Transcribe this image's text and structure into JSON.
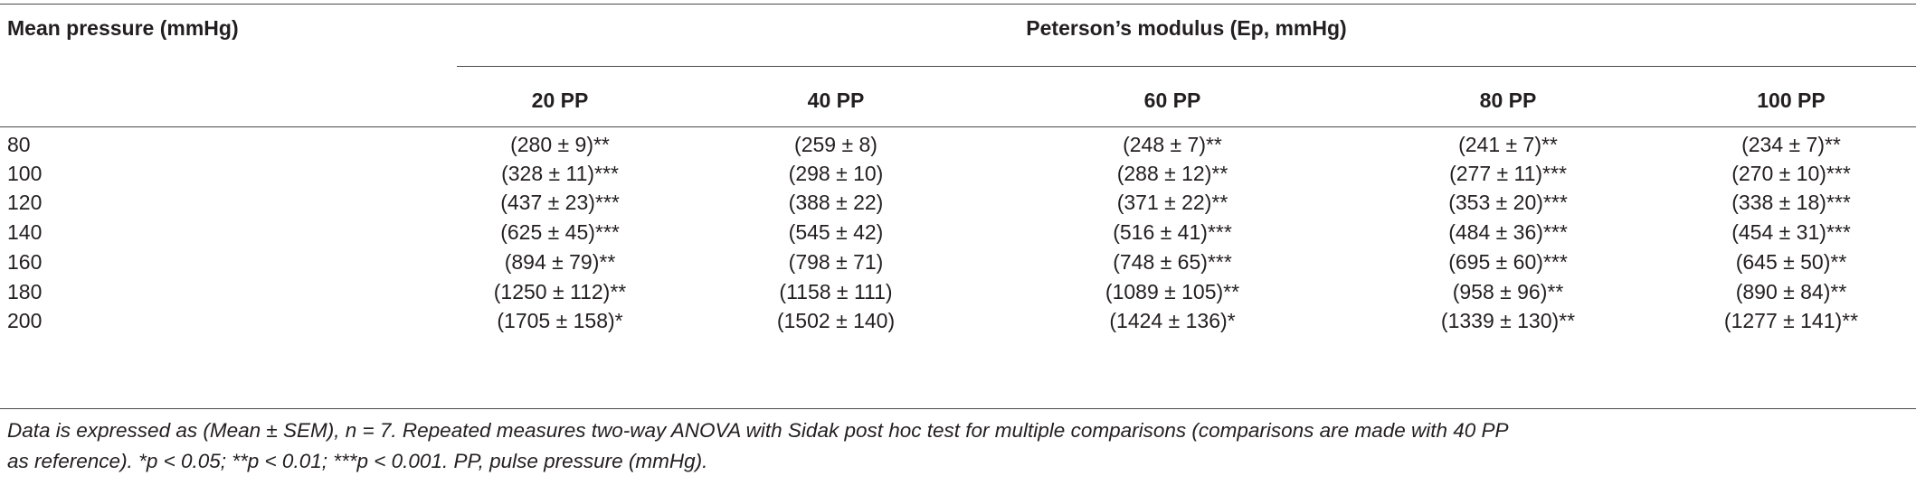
{
  "table": {
    "row_header": "Mean pressure (mmHg)",
    "group_header": "Peterson’s modulus (Ep, mmHg)",
    "columns": [
      "20 PP",
      "40 PP",
      "60 PP",
      "80 PP",
      "100 PP"
    ],
    "rows": [
      {
        "mean_pressure": "80",
        "cells": [
          "(280 ± 9)**",
          "(259 ± 8)",
          "(248 ± 7)**",
          "(241 ± 7)**",
          "(234 ± 7)**"
        ]
      },
      {
        "mean_pressure": "100",
        "cells": [
          "(328 ± 11)***",
          "(298 ± 10)",
          "(288 ± 12)**",
          "(277 ± 11)***",
          "(270 ± 10)***"
        ]
      },
      {
        "mean_pressure": "120",
        "cells": [
          "(437 ± 23)***",
          "(388 ± 22)",
          "(371 ± 22)**",
          "(353 ± 20)***",
          "(338 ± 18)***"
        ]
      },
      {
        "mean_pressure": "140",
        "cells": [
          "(625 ± 45)***",
          "(545 ± 42)",
          "(516 ± 41)***",
          "(484 ± 36)***",
          "(454 ± 31)***"
        ]
      },
      {
        "mean_pressure": "160",
        "cells": [
          "(894 ± 79)**",
          "(798 ± 71)",
          "(748 ± 65)***",
          "(695 ± 60)***",
          "(645 ± 50)**"
        ]
      },
      {
        "mean_pressure": "180",
        "cells": [
          "(1250 ± 112)**",
          "(1158 ± 111)",
          "(1089 ± 105)**",
          "(958 ± 96)**",
          "(890 ± 84)**"
        ]
      },
      {
        "mean_pressure": "200",
        "cells": [
          "(1705 ± 158)*",
          "(1502 ± 140)",
          "(1424 ± 136)*",
          "(1339 ± 130)**",
          "(1277 ± 141)**"
        ]
      }
    ]
  },
  "footnote": {
    "line1": "Data is expressed as (Mean ± SEM), n = 7. Repeated measures two-way ANOVA with Sidak post hoc test for multiple comparisons (comparisons are made with 40 PP",
    "line2": "as reference). *p < 0.05; **p < 0.01; ***p < 0.001. PP, pulse pressure (mmHg)."
  }
}
